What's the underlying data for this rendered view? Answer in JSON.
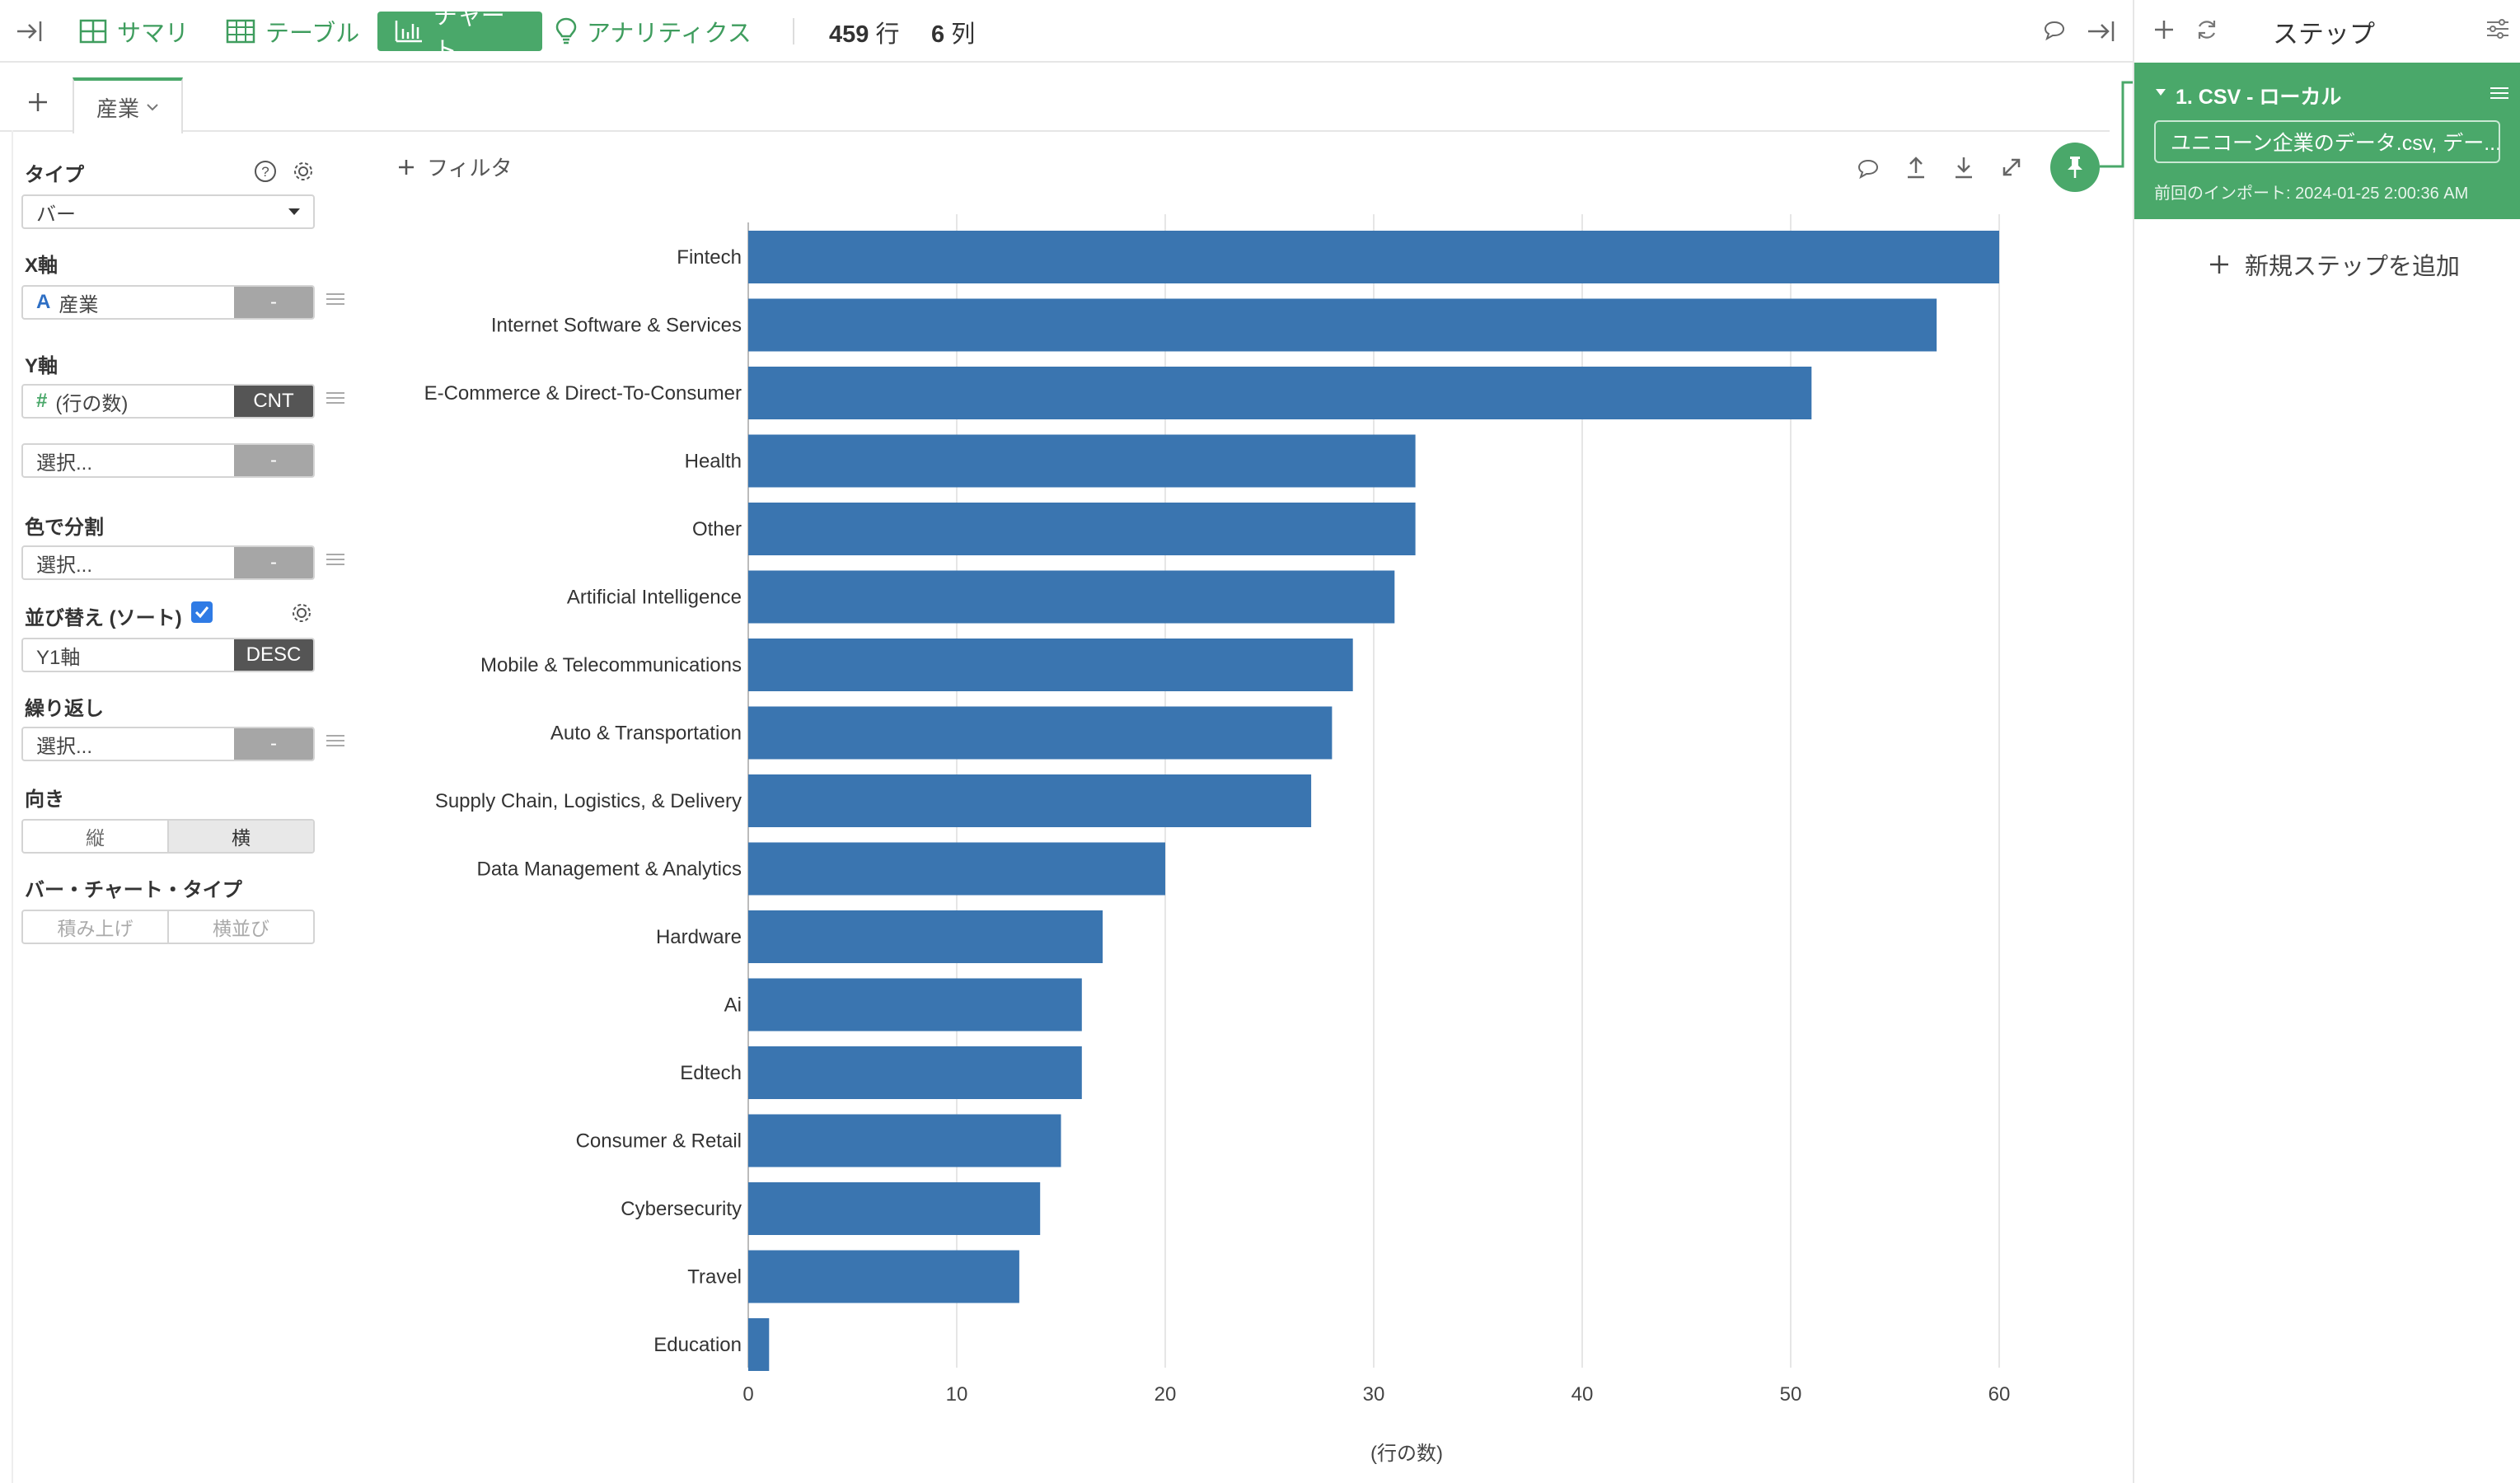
{
  "topbar": {
    "tabs": [
      {
        "label": "サマリ",
        "icon": "summary-grid-icon"
      },
      {
        "label": "テーブル",
        "icon": "table-icon"
      },
      {
        "label": "チャート",
        "icon": "chart-icon",
        "active": true
      },
      {
        "label": "アナリティクス",
        "icon": "bulb-icon"
      }
    ],
    "rows_count": "459",
    "rows_unit": "行",
    "cols_count": "6",
    "cols_unit": "列"
  },
  "chart_tabs": {
    "add_label": "+",
    "active_tab": "産業"
  },
  "config": {
    "type_label": "タイプ",
    "type_value": "バー",
    "x_label": "X軸",
    "x_field": {
      "type_icon": "A",
      "value": "産業",
      "agg": "-"
    },
    "y_label": "Y軸",
    "y_field": {
      "type_icon": "#",
      "value": "(行の数)",
      "agg": "CNT"
    },
    "y2_field": {
      "value": "選択...",
      "agg": "-"
    },
    "color_label": "色で分割",
    "color_field": {
      "value": "選択...",
      "agg": "-"
    },
    "sort_label": "並び替え (ソート)",
    "sort_checked": true,
    "sort_field": {
      "value": "Y1軸",
      "agg": "DESC"
    },
    "repeat_label": "繰り返し",
    "repeat_field": {
      "value": "選択...",
      "agg": "-"
    },
    "orientation_label": "向き",
    "orientation_options": [
      "縦",
      "横"
    ],
    "orientation_selected": "横",
    "bar_type_label": "バー・チャート・タイプ",
    "bar_type_options": [
      "積み上げ",
      "横並び"
    ]
  },
  "chart_toolbar": {
    "filter_label": "フィルタ"
  },
  "chart_data": {
    "type": "bar",
    "orientation": "horizontal",
    "categories": [
      "Fintech",
      "Internet Software & Services",
      "E-Commerce & Direct-To-Consumer",
      "Health",
      "Other",
      "Artificial Intelligence",
      "Mobile & Telecommunications",
      "Auto & Transportation",
      "Supply Chain, Logistics, & Delivery",
      "Data Management & Analytics",
      "Hardware",
      "Ai",
      "Edtech",
      "Consumer & Retail",
      "Cybersecurity",
      "Travel",
      "Education"
    ],
    "values": [
      60,
      57,
      51,
      32,
      32,
      31,
      29,
      28,
      27,
      20,
      17,
      16,
      16,
      15,
      14,
      13,
      1
    ],
    "xlabel": "(行の数)",
    "ylabel": "",
    "xlim": [
      0,
      60
    ],
    "xticks": [
      0,
      10,
      20,
      30,
      40,
      50,
      60
    ],
    "grid": true,
    "bar_color": "#3a75b0"
  },
  "steps": {
    "title": "ステップ",
    "step1_title": "1. CSV - ローカル",
    "step1_file": "ユニコーン企業のデータ.csv, デー...",
    "step1_import": "前回のインポート: 2024-01-25 2:00:36 AM",
    "add_step_label": "新規ステップを追加"
  },
  "colors": {
    "accent": "#4aa86a",
    "bar": "#3a75b0"
  }
}
